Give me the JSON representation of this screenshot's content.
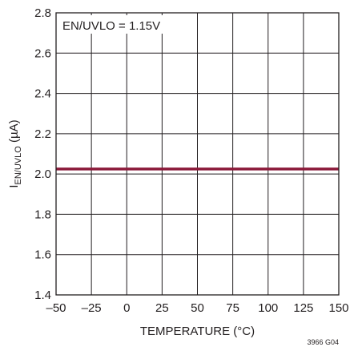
{
  "chart_data": {
    "type": "line",
    "title": "",
    "xlabel": "TEMPERATURE (°C)",
    "ylabel_main": "I",
    "ylabel_sub": "EN/UVLO",
    "ylabel_unit": " (µA)",
    "xlim": [
      -50,
      150
    ],
    "ylim": [
      1.4,
      2.8
    ],
    "x_ticks": [
      -50,
      -25,
      0,
      25,
      50,
      75,
      100,
      125,
      150
    ],
    "x_tick_labels": [
      "–50",
      "–25",
      "0",
      "25",
      "50",
      "75",
      "100",
      "125",
      "150"
    ],
    "y_ticks": [
      1.4,
      1.6,
      1.8,
      2.0,
      2.2,
      2.4,
      2.6,
      2.8
    ],
    "y_tick_labels": [
      "1.4",
      "1.6",
      "1.8",
      "2.0",
      "2.2",
      "2.4",
      "2.6",
      "2.8"
    ],
    "grid": true,
    "series": [
      {
        "x": [
          -50,
          -25,
          0,
          25,
          50,
          75,
          100,
          125,
          150
        ],
        "values": [
          2.025,
          2.025,
          2.025,
          2.025,
          2.025,
          2.025,
          2.025,
          2.025,
          2.025
        ],
        "color": "#8b1a3a"
      }
    ],
    "annotation": "EN/UVLO = 1.15V",
    "figure_code": "3966 G04"
  }
}
